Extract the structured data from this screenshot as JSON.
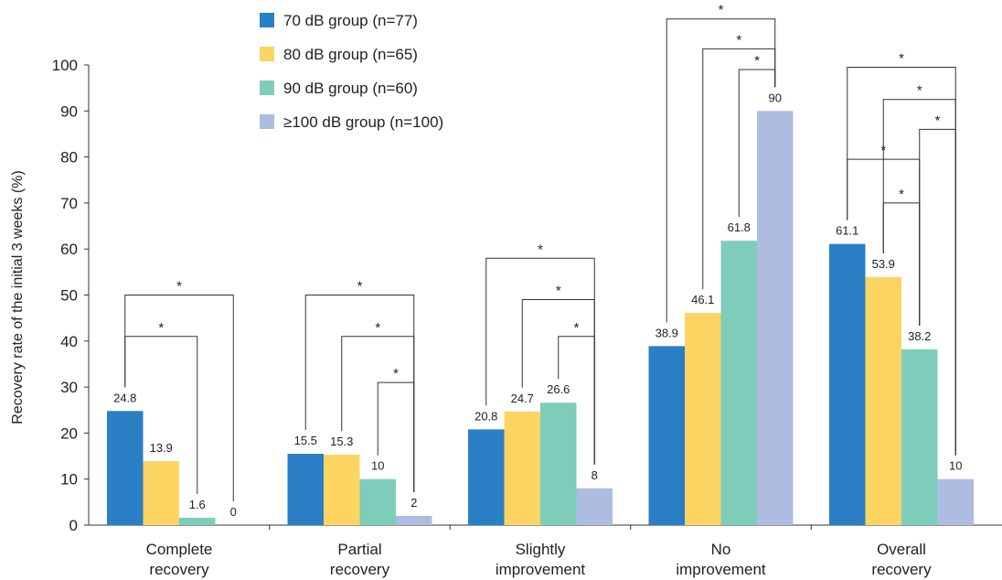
{
  "chart_data": {
    "type": "bar",
    "title": "",
    "xlabel": "",
    "ylabel": "Recovery rate of the initial 3 weeks (%)",
    "ylim": [
      0,
      100
    ],
    "yticks": [
      0,
      10,
      20,
      30,
      40,
      50,
      60,
      70,
      80,
      90,
      100
    ],
    "grid": false,
    "legend_position": "top-left",
    "categories": [
      [
        "Complete",
        "recovery"
      ],
      [
        "Partial",
        "recovery"
      ],
      [
        "Slightly",
        "improvement"
      ],
      [
        "No",
        "improvement"
      ],
      [
        "Overall",
        "recovery"
      ]
    ],
    "series": [
      {
        "name": "70 dB group (n=77)",
        "color": "#2B7FC4",
        "values": [
          24.8,
          15.5,
          20.8,
          38.9,
          61.1
        ],
        "labels": [
          "24.8",
          "15.5",
          "20.8",
          "38.9",
          "61.1"
        ]
      },
      {
        "name": "80 dB group (n=65)",
        "color": "#FCD462",
        "values": [
          13.9,
          15.3,
          24.7,
          46.1,
          53.9
        ],
        "labels": [
          "13.9",
          "15.3",
          "24.7",
          "46.1",
          "53.9"
        ]
      },
      {
        "name": "90 dB group (n=60)",
        "color": "#7ECDBB",
        "values": [
          1.6,
          10,
          26.6,
          61.8,
          38.2
        ],
        "labels": [
          "1.6",
          "10",
          "26.6",
          "61.8",
          "38.2"
        ]
      },
      {
        "name": "≥100 dB group (n=100)",
        "color": "#AEBCE1",
        "values": [
          0,
          2,
          8,
          90,
          10
        ],
        "labels": [
          "0",
          "2",
          "8",
          "90",
          "10"
        ]
      }
    ],
    "significance_marker": "*",
    "significance": [
      {
        "category": 0,
        "from": 0,
        "to": 3,
        "y": 50
      },
      {
        "category": 0,
        "from": 0,
        "to": 2,
        "y": 41
      },
      {
        "category": 1,
        "from": 0,
        "to": 3,
        "y": 50
      },
      {
        "category": 1,
        "from": 1,
        "to": 3,
        "y": 41
      },
      {
        "category": 1,
        "from": 2,
        "to": 3,
        "y": 31
      },
      {
        "category": 2,
        "from": 0,
        "to": 3,
        "y": 58
      },
      {
        "category": 2,
        "from": 1,
        "to": 3,
        "y": 49
      },
      {
        "category": 2,
        "from": 2,
        "to": 3,
        "y": 41
      },
      {
        "category": 3,
        "from": 0,
        "to": 3,
        "y": 110
      },
      {
        "category": 3,
        "from": 1,
        "to": 3,
        "y": 103.5
      },
      {
        "category": 3,
        "from": 2,
        "to": 3,
        "y": 99
      },
      {
        "category": 4,
        "from": 0,
        "to": 3,
        "y": 99.5
      },
      {
        "category": 4,
        "from": 1,
        "to": 3,
        "y": 92.5
      },
      {
        "category": 4,
        "from": 2,
        "to": 3,
        "y": 86
      },
      {
        "category": 4,
        "from": 0,
        "to": 2,
        "y": 79.5
      },
      {
        "category": 4,
        "from": 1,
        "to": 2,
        "y": 70
      }
    ]
  }
}
